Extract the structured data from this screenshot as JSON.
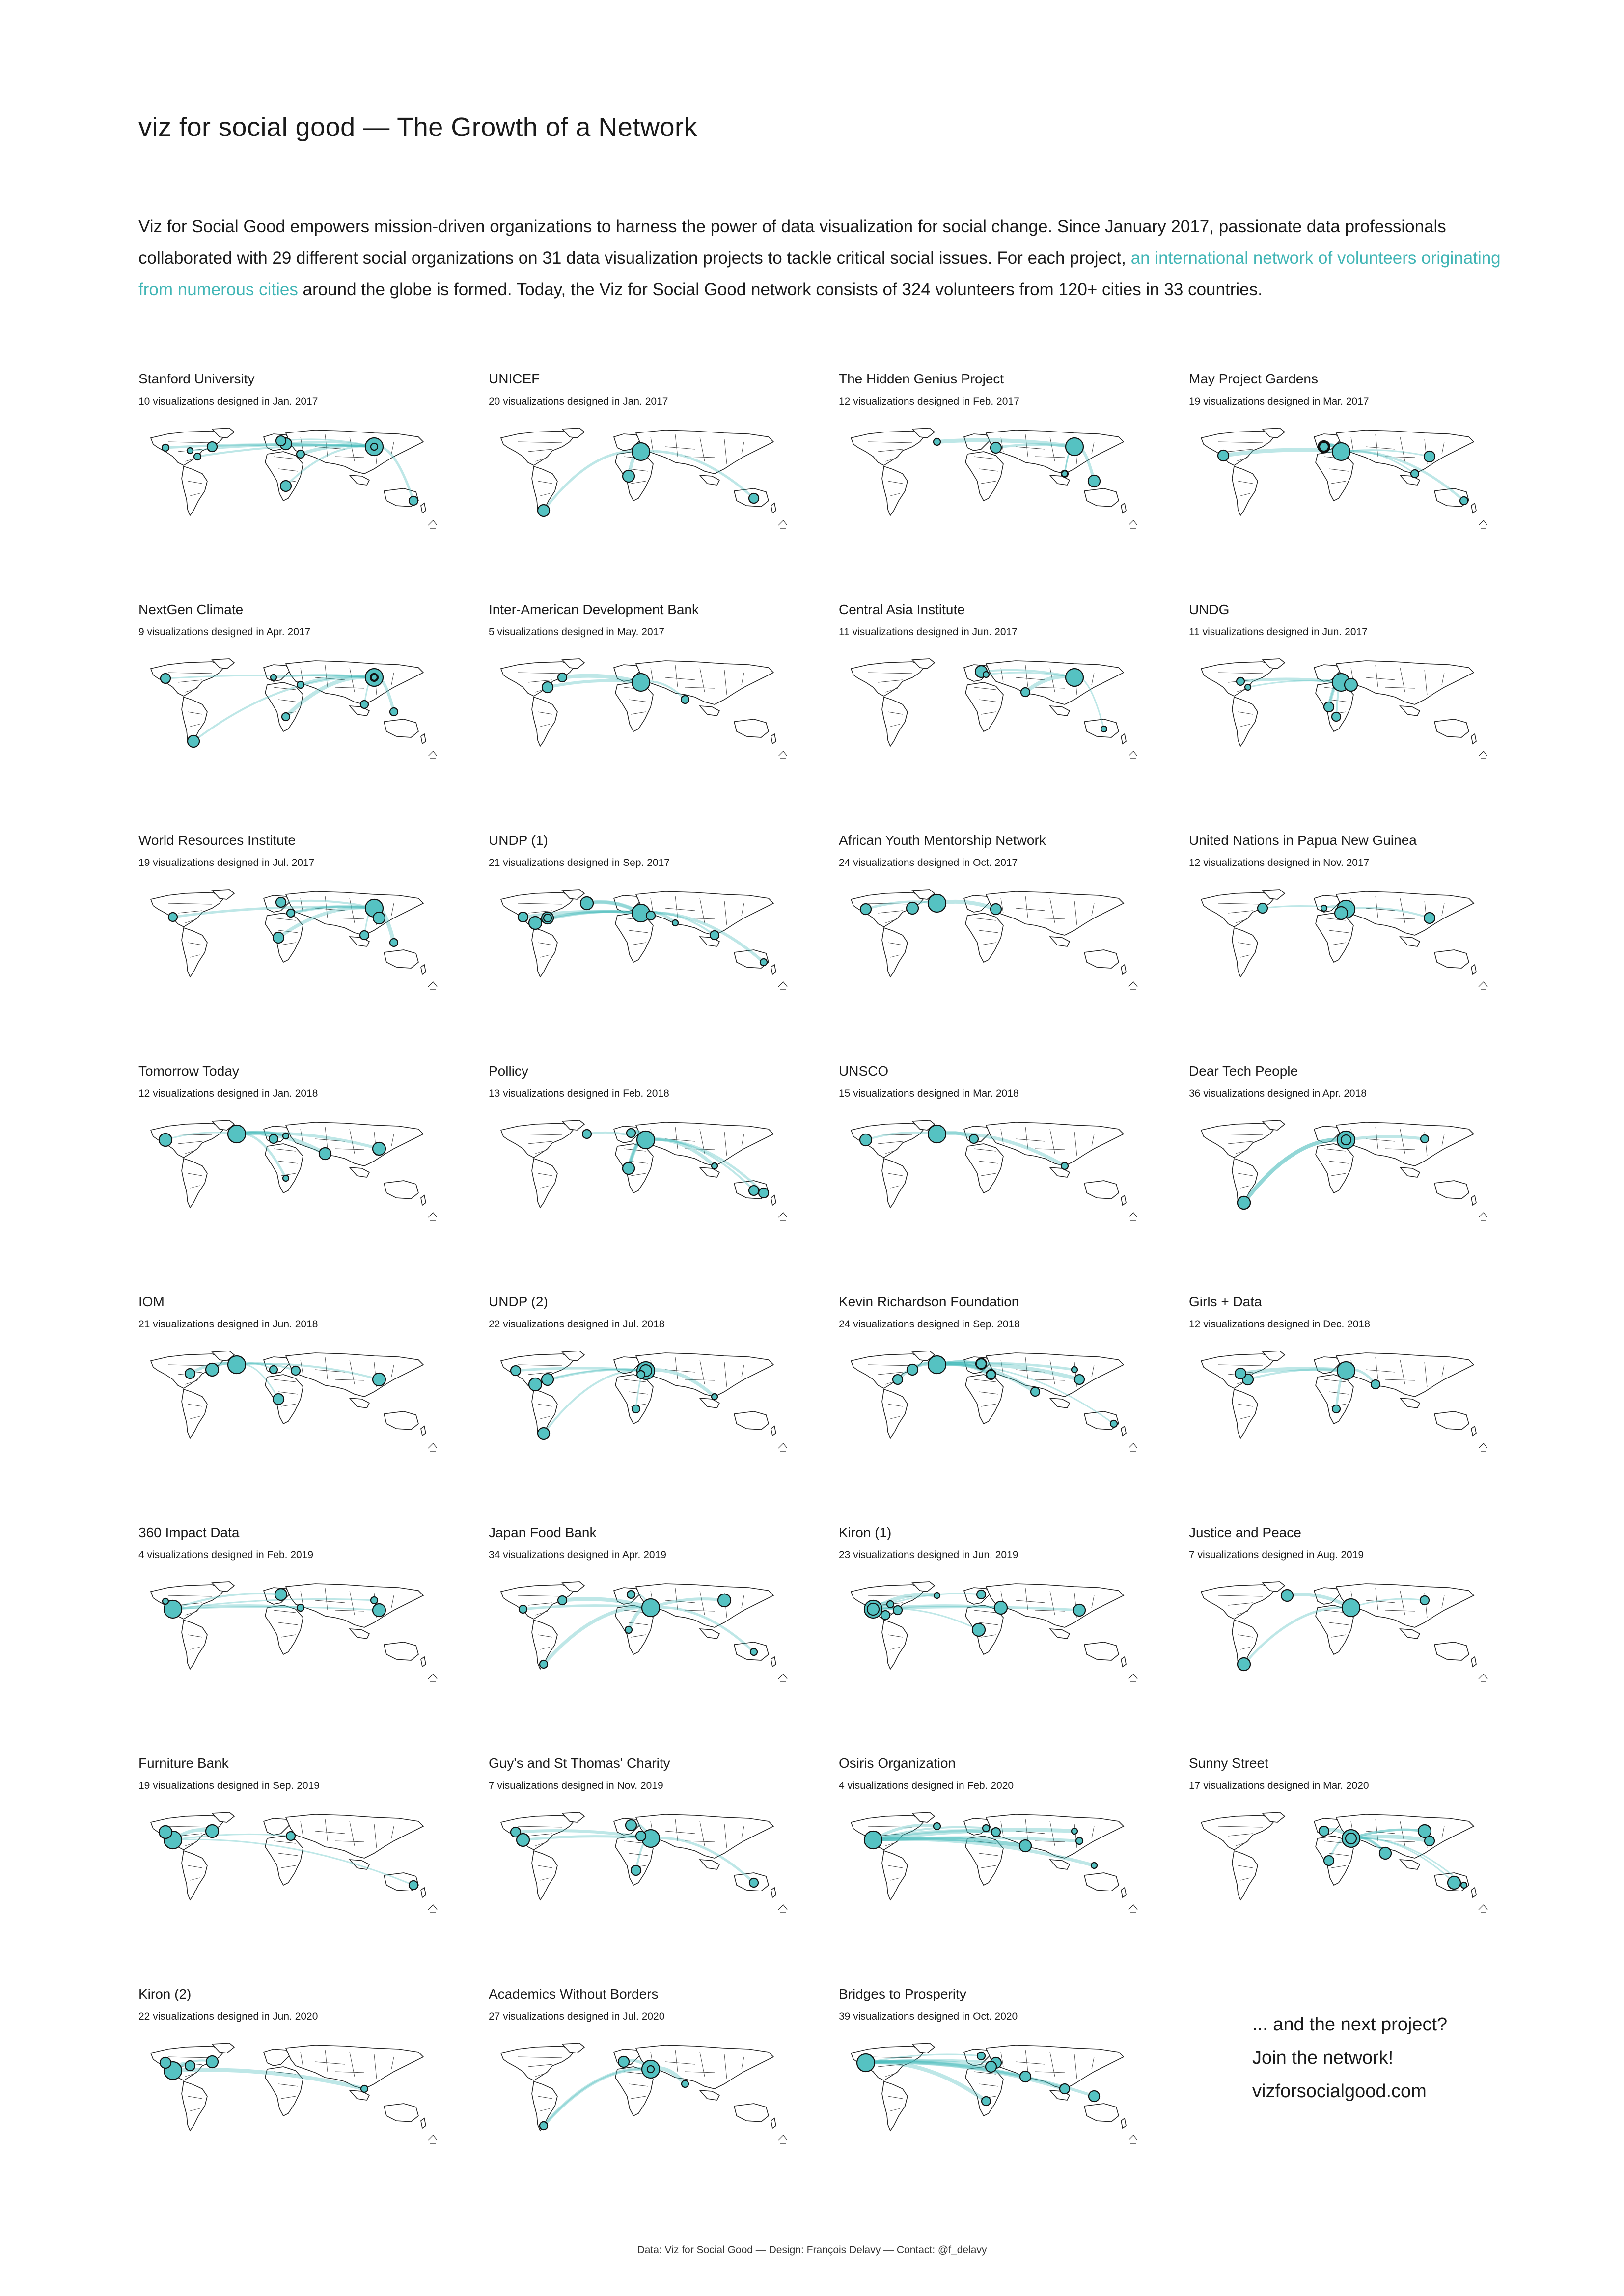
{
  "header": {
    "title": "viz for social good — The Growth of a Network"
  },
  "intro": {
    "part1": "Viz for Social Good empowers mission-driven organizations to harness the power of data visualization for social change. Since January 2017, passionate data professionals collaborated with 29 different social organizations on 31 data visualization projects to tackle critical social issues. For each project, ",
    "link": "an international network of volunteers originating from numerous cities",
    "part2": " around the globe is formed. Today, the Viz for Social Good network consists of 324 volunteers from 120+ cities in 33 countries."
  },
  "colors": {
    "accent": "#46b9b9",
    "node_fill": "#55c2c2",
    "node_stroke": "#111111",
    "land_stroke": "#222222"
  },
  "projects": [
    {
      "name": "Stanford University",
      "subtitle": "10 visualizations designed in Jan. 2017"
    },
    {
      "name": "UNICEF",
      "subtitle": "20 visualizations designed in Jan. 2017"
    },
    {
      "name": "The Hidden Genius Project",
      "subtitle": "12 visualizations designed in Feb. 2017"
    },
    {
      "name": "May Project Gardens",
      "subtitle": "19 visualizations designed in Mar. 2017"
    },
    {
      "name": "NextGen Climate",
      "subtitle": "9 visualizations designed in Apr. 2017"
    },
    {
      "name": "Inter-American Development Bank",
      "subtitle": "5 visualizations designed in May. 2017"
    },
    {
      "name": "Central Asia Institute",
      "subtitle": "11 visualizations designed in Jun. 2017"
    },
    {
      "name": "UNDG",
      "subtitle": "11 visualizations designed in Jun. 2017"
    },
    {
      "name": "World Resources Institute",
      "subtitle": "19 visualizations designed in Jul. 2017"
    },
    {
      "name": "UNDP (1)",
      "subtitle": "21 visualizations designed in Sep. 2017"
    },
    {
      "name": "African Youth Mentorship Network",
      "subtitle": "24 visualizations designed in Oct. 2017"
    },
    {
      "name": "United Nations in Papua New Guinea",
      "subtitle": "12 visualizations designed in Nov. 2017"
    },
    {
      "name": "Tomorrow Today",
      "subtitle": "12 visualizations designed in Jan. 2018"
    },
    {
      "name": "Pollicy",
      "subtitle": "13 visualizations designed in Feb. 2018"
    },
    {
      "name": "UNSCO",
      "subtitle": "15 visualizations designed in Mar. 2018"
    },
    {
      "name": "Dear Tech People",
      "subtitle": "36 visualizations designed in Apr. 2018"
    },
    {
      "name": "IOM",
      "subtitle": "21 visualizations designed in Jun. 2018"
    },
    {
      "name": "UNDP (2)",
      "subtitle": "22 visualizations designed in Jul. 2018"
    },
    {
      "name": "Kevin Richardson Foundation",
      "subtitle": "24 visualizations designed in Sep. 2018"
    },
    {
      "name": "Girls + Data",
      "subtitle": "12 visualizations designed in Dec. 2018"
    },
    {
      "name": "360 Impact Data",
      "subtitle": "4 visualizations designed in Feb. 2019"
    },
    {
      "name": "Japan Food Bank",
      "subtitle": "34 visualizations designed in Apr. 2019"
    },
    {
      "name": "Kiron (1)",
      "subtitle": "23 visualizations designed in Jun. 2019"
    },
    {
      "name": "Justice and Peace",
      "subtitle": "7 visualizations designed in Aug. 2019"
    },
    {
      "name": "Furniture Bank",
      "subtitle": "19 visualizations designed in Sep. 2019"
    },
    {
      "name": "Guy's and St Thomas' Charity",
      "subtitle": "7 visualizations designed in Nov. 2019"
    },
    {
      "name": "Osiris Organization",
      "subtitle": "4 visualizations designed in Feb. 2020"
    },
    {
      "name": "Sunny Street",
      "subtitle": "17 visualizations designed in Mar. 2020"
    },
    {
      "name": "Kiron (2)",
      "subtitle": "22 visualizations designed in Jun. 2020"
    },
    {
      "name": "Academics Without Borders",
      "subtitle": "27 visualizations designed in Jul. 2020"
    },
    {
      "name": "Bridges to Prosperity",
      "subtitle": "39 visualizations designed in Oct. 2020"
    }
  ],
  "cta": {
    "line1": "... and the next project?",
    "line2": "Join the network!",
    "line3": "vizforsocialgood.com"
  },
  "footer": {
    "text": "Data: Viz for Social Good — Design: François Delavy — Contact: @f_delavy"
  }
}
